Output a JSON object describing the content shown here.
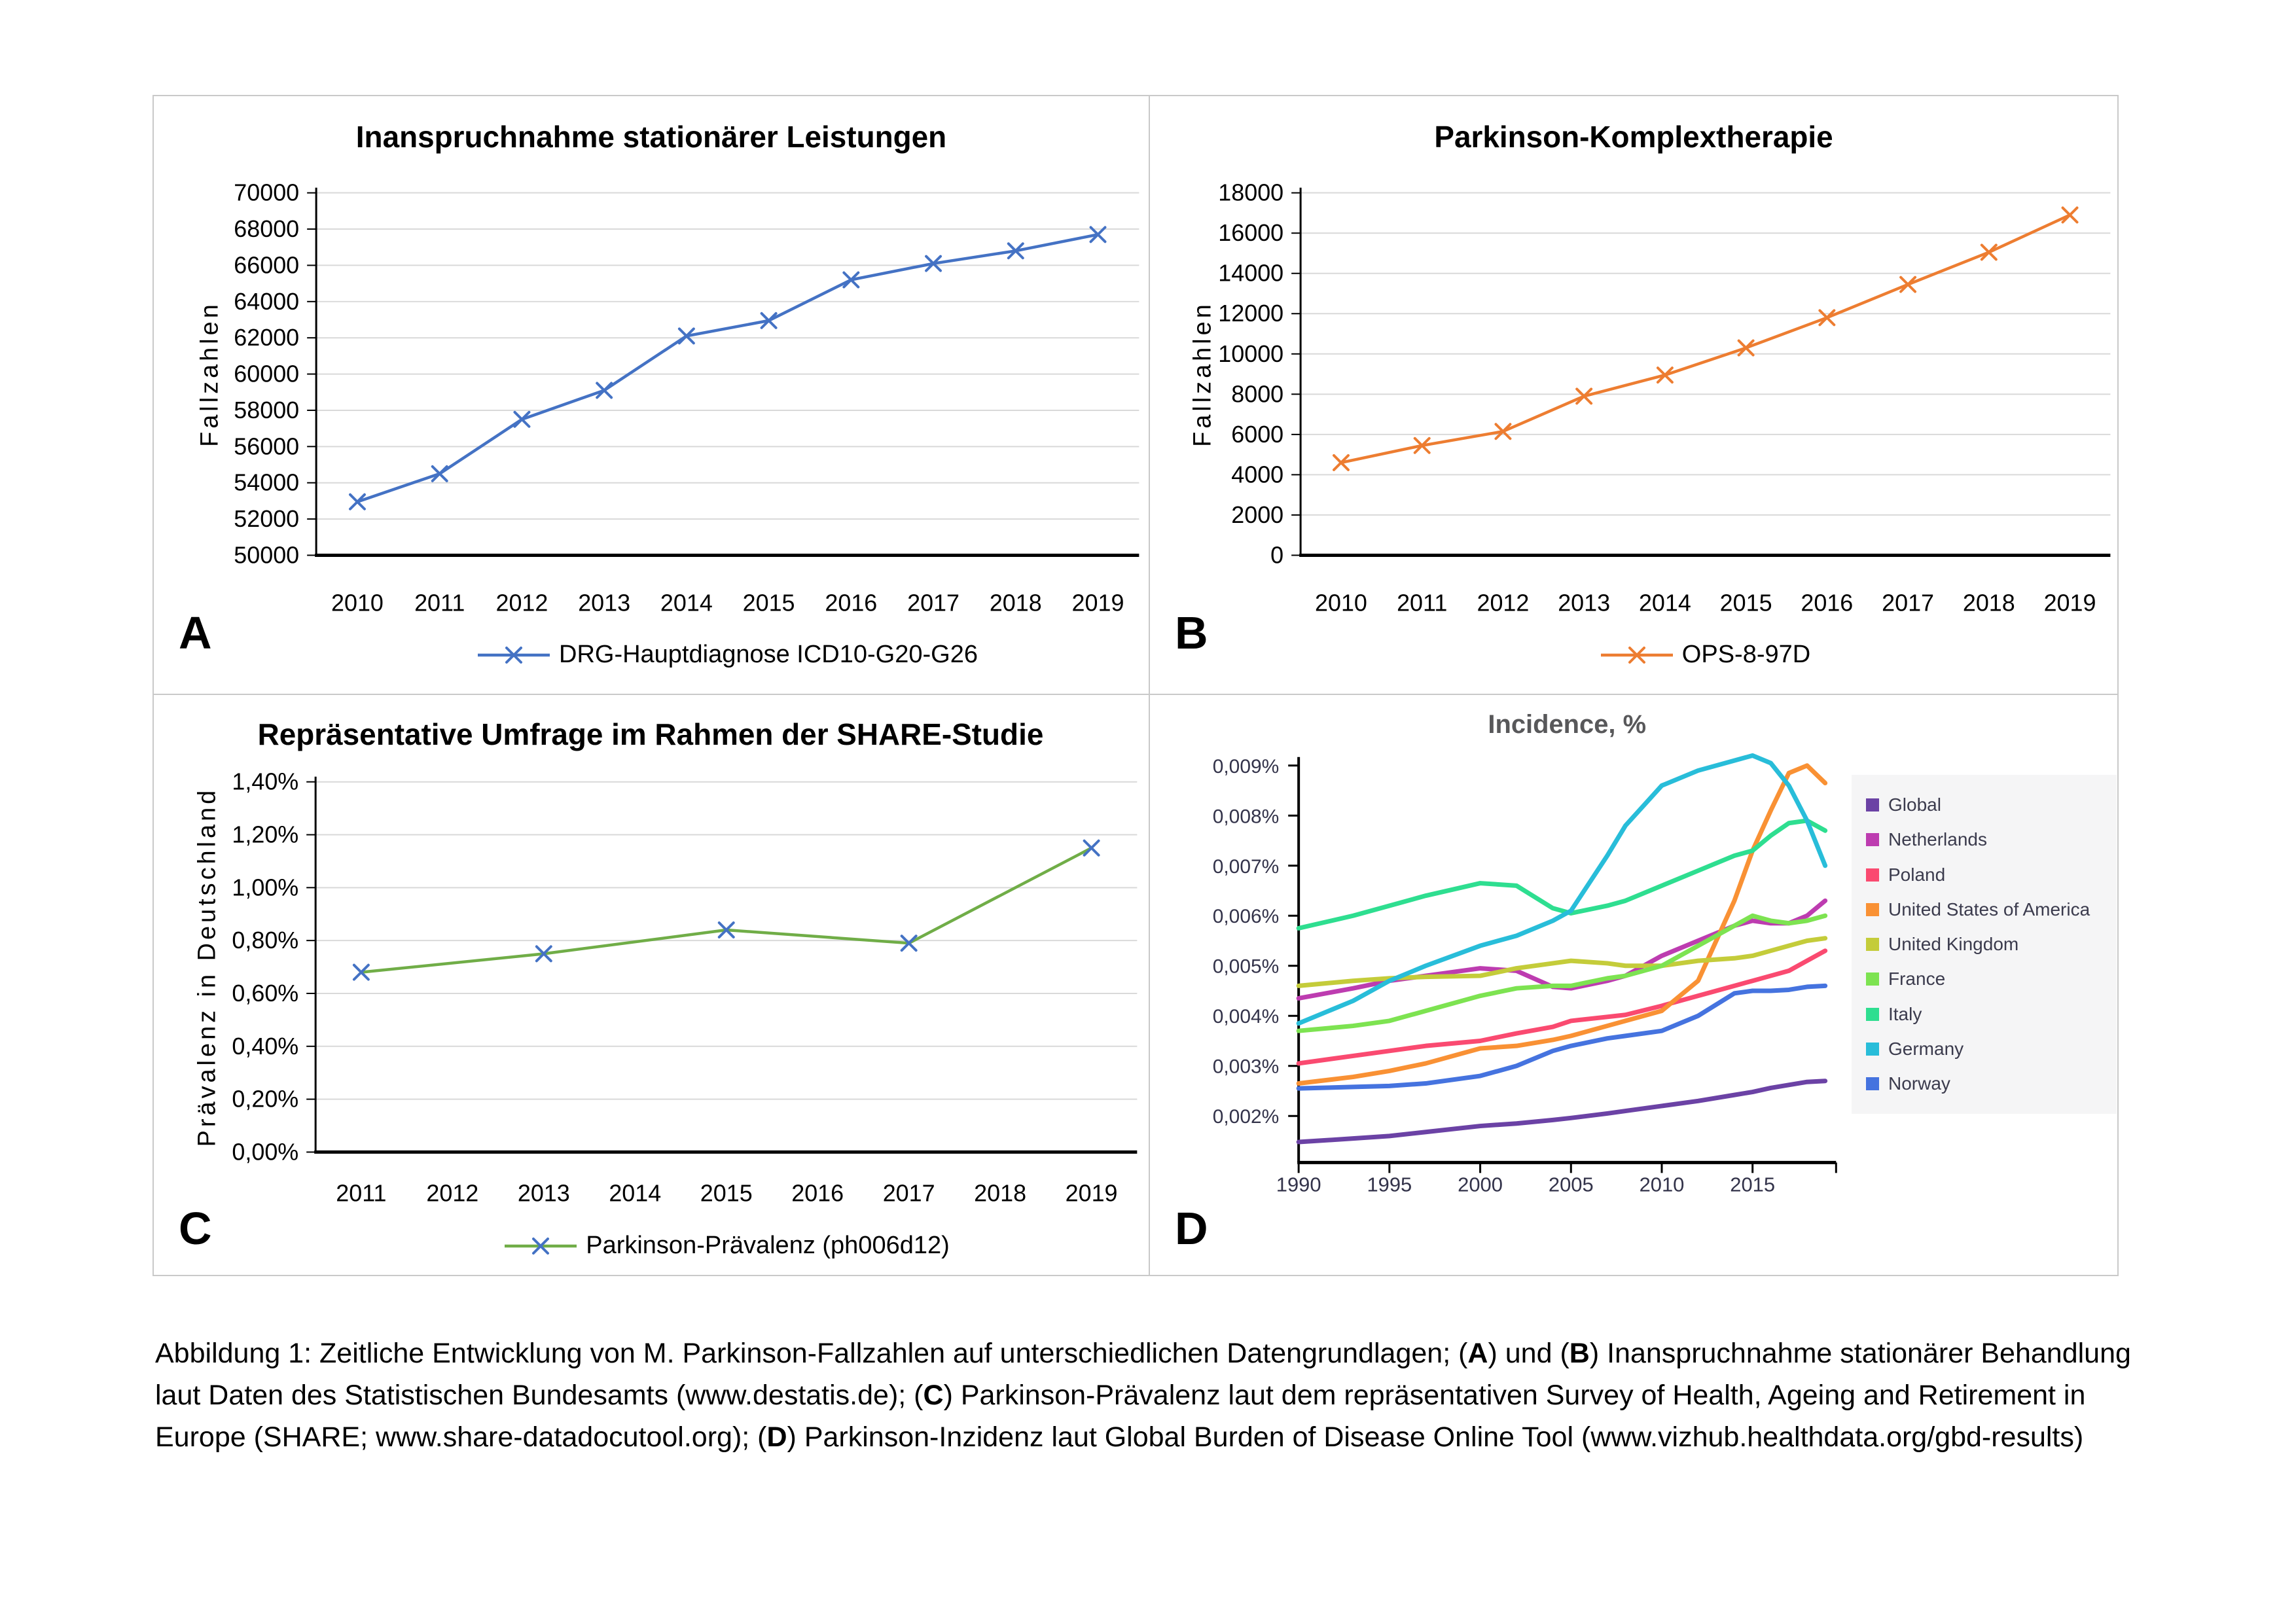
{
  "caption": {
    "lines": [
      [
        {
          "t": "Abbildung 1: Zeitliche Entwicklung von M. Parkinson-Fallzahlen auf unterschiedlichen Datengrundlagen; (",
          "b": false
        },
        {
          "t": "A",
          "b": true
        },
        {
          "t": ") und (",
          "b": false
        },
        {
          "t": "B",
          "b": true
        },
        {
          "t": ") Inanspruchnahme stationärer Behandlung",
          "b": false
        }
      ],
      [
        {
          "t": "laut Daten des Statistischen Bundesamts (www.destatis.de); (",
          "b": false
        },
        {
          "t": "C",
          "b": true
        },
        {
          "t": ") Parkinson-Prävalenz laut dem repräsentativen Survey of Health, Ageing and Retirement in",
          "b": false
        }
      ],
      [
        {
          "t": "Europe (SHARE; www.share-datadocutool.org); (",
          "b": false
        },
        {
          "t": "D",
          "b": true
        },
        {
          "t": ") Parkinson-Inzidenz laut Global Burden of Disease Online Tool (www.vizhub.healthdata.org/gbd-results)",
          "b": false
        }
      ]
    ]
  },
  "chart_data": [
    {
      "panel": "A",
      "type": "line",
      "title": "Inanspruchnahme stationärer Leistungen",
      "ylabel": "Fallzahlen",
      "xlabel": "",
      "ylim": [
        50000,
        70000
      ],
      "grid": true,
      "legend_position": "bottom",
      "y_ticks": [
        {
          "v": 50000,
          "label": "50000"
        },
        {
          "v": 52000,
          "label": "52000"
        },
        {
          "v": 54000,
          "label": "54000"
        },
        {
          "v": 56000,
          "label": "56000"
        },
        {
          "v": 58000,
          "label": "58000"
        },
        {
          "v": 60000,
          "label": "60000"
        },
        {
          "v": 62000,
          "label": "62000"
        },
        {
          "v": 64000,
          "label": "64000"
        },
        {
          "v": 66000,
          "label": "66000"
        },
        {
          "v": 68000,
          "label": "68000"
        },
        {
          "v": 70000,
          "label": "70000"
        }
      ],
      "categories": [
        "2010",
        "2011",
        "2012",
        "2013",
        "2014",
        "2015",
        "2016",
        "2017",
        "2018",
        "2019"
      ],
      "series": [
        {
          "name": "DRG-Hauptdiagnose ICD10-G20-G26",
          "color": "#4472C4",
          "marker": "x",
          "marker_color": "#4472C4",
          "values": [
            52950,
            54500,
            57500,
            59100,
            62100,
            62950,
            65200,
            66100,
            66800,
            67700
          ]
        }
      ]
    },
    {
      "panel": "B",
      "type": "line",
      "title": "Parkinson-Komplextherapie",
      "ylabel": "Fallzahlen",
      "xlabel": "",
      "ylim": [
        0,
        18000
      ],
      "grid": true,
      "legend_position": "bottom",
      "y_ticks": [
        {
          "v": 0,
          "label": "0"
        },
        {
          "v": 2000,
          "label": "2000"
        },
        {
          "v": 4000,
          "label": "4000"
        },
        {
          "v": 6000,
          "label": "6000"
        },
        {
          "v": 8000,
          "label": "8000"
        },
        {
          "v": 10000,
          "label": "10000"
        },
        {
          "v": 12000,
          "label": "12000"
        },
        {
          "v": 14000,
          "label": "14000"
        },
        {
          "v": 16000,
          "label": "16000"
        },
        {
          "v": 18000,
          "label": "18000"
        }
      ],
      "categories": [
        "2010",
        "2011",
        "2012",
        "2013",
        "2014",
        "2015",
        "2016",
        "2017",
        "2018",
        "2019"
      ],
      "series": [
        {
          "name": "OPS-8-97D",
          "color": "#ED7D31",
          "marker": "x",
          "marker_color": "#ED7D31",
          "values": [
            4600,
            5450,
            6150,
            7900,
            8950,
            10300,
            11800,
            13450,
            15050,
            16900
          ]
        }
      ]
    },
    {
      "panel": "C",
      "type": "line",
      "title": "Repräsentative Umfrage im Rahmen der SHARE-Studie",
      "ylabel": "Prävalenz in Deutschland",
      "xlabel": "",
      "ylim": [
        0,
        1.4
      ],
      "grid": true,
      "legend_position": "bottom",
      "y_ticks": [
        {
          "v": 0.0,
          "label": "0,00%"
        },
        {
          "v": 0.2,
          "label": "0,20%"
        },
        {
          "v": 0.4,
          "label": "0,40%"
        },
        {
          "v": 0.6,
          "label": "0,60%"
        },
        {
          "v": 0.8,
          "label": "0,80%"
        },
        {
          "v": 1.0,
          "label": "1,00%"
        },
        {
          "v": 1.2,
          "label": "1,20%"
        },
        {
          "v": 1.4,
          "label": "1,40%"
        }
      ],
      "categories": [
        "2011",
        "2012",
        "2013",
        "2014",
        "2015",
        "2016",
        "2017",
        "2018",
        "2019"
      ],
      "series": [
        {
          "name": "Parkinson-Prävalenz (ph006d12)",
          "color": "#70AD47",
          "marker": "x",
          "marker_color": "#4472C4",
          "x_indices": [
            0,
            2,
            4,
            6,
            8
          ],
          "values": [
            0.68,
            0.75,
            0.84,
            0.79,
            1.15
          ]
        }
      ]
    },
    {
      "panel": "D",
      "type": "line",
      "title": "Incidence, %",
      "ylabel": "",
      "xlabel": "",
      "xlim": [
        1990,
        2019.6
      ],
      "ylim": [
        0.00107,
        0.00917
      ],
      "grid": false,
      "legend_position": "right",
      "y_ticks": [
        {
          "v": 0.002,
          "label": "0,002%"
        },
        {
          "v": 0.003,
          "label": "0,003%"
        },
        {
          "v": 0.004,
          "label": "0,004%"
        },
        {
          "v": 0.005,
          "label": "0,005%"
        },
        {
          "v": 0.006,
          "label": "0,006%"
        },
        {
          "v": 0.007,
          "label": "0,007%"
        },
        {
          "v": 0.008,
          "label": "0,008%"
        },
        {
          "v": 0.009,
          "label": "0,009%"
        }
      ],
      "x_ticks": [
        {
          "v": 1990,
          "label": "1990"
        },
        {
          "v": 1995,
          "label": "1995"
        },
        {
          "v": 2000,
          "label": "2000"
        },
        {
          "v": 2005,
          "label": "2005"
        },
        {
          "v": 2010,
          "label": "2010"
        },
        {
          "v": 2015,
          "label": "2015"
        },
        {
          "v": 2019.6,
          "label": ""
        }
      ],
      "x": [
        1990,
        1993,
        1995,
        1997,
        2000,
        2002,
        2004,
        2005,
        2007,
        2008,
        2010,
        2012,
        2014,
        2015,
        2016,
        2017,
        2018,
        2019
      ],
      "series": [
        {
          "name": "Global",
          "color": "#6B42A5",
          "values": [
            0.00148,
            0.00155,
            0.0016,
            0.00168,
            0.0018,
            0.00185,
            0.00192,
            0.00196,
            0.00205,
            0.0021,
            0.0022,
            0.0023,
            0.00242,
            0.00248,
            0.00256,
            0.00262,
            0.00268,
            0.0027
          ]
        },
        {
          "name": "Netherlands",
          "color": "#BD3CB0",
          "values": [
            0.00435,
            0.00455,
            0.0047,
            0.0048,
            0.00495,
            0.0049,
            0.00458,
            0.00455,
            0.0047,
            0.0048,
            0.0052,
            0.0055,
            0.0058,
            0.0059,
            0.00585,
            0.00585,
            0.006,
            0.0063
          ]
        },
        {
          "name": "Poland",
          "color": "#FA4A70",
          "values": [
            0.00305,
            0.0032,
            0.0033,
            0.0034,
            0.0035,
            0.00365,
            0.00378,
            0.0039,
            0.00398,
            0.00402,
            0.0042,
            0.0044,
            0.0046,
            0.0047,
            0.0048,
            0.0049,
            0.0051,
            0.0053
          ]
        },
        {
          "name": "United States of America",
          "color": "#F99134",
          "values": [
            0.00265,
            0.00278,
            0.0029,
            0.00305,
            0.00335,
            0.0034,
            0.00352,
            0.0036,
            0.0038,
            0.0039,
            0.0041,
            0.0047,
            0.0063,
            0.0073,
            0.0081,
            0.00885,
            0.009,
            0.00865
          ]
        },
        {
          "name": "United Kingdom",
          "color": "#C4CC3A",
          "values": [
            0.0046,
            0.0047,
            0.00475,
            0.00478,
            0.0048,
            0.00495,
            0.00505,
            0.0051,
            0.00505,
            0.005,
            0.005,
            0.0051,
            0.00515,
            0.0052,
            0.0053,
            0.0054,
            0.0055,
            0.00555
          ]
        },
        {
          "name": "France",
          "color": "#7DE351",
          "values": [
            0.0037,
            0.0038,
            0.0039,
            0.0041,
            0.0044,
            0.00455,
            0.0046,
            0.0046,
            0.00475,
            0.0048,
            0.005,
            0.0054,
            0.0058,
            0.006,
            0.0059,
            0.00585,
            0.0059,
            0.006
          ]
        },
        {
          "name": "Italy",
          "color": "#2EDE90",
          "values": [
            0.00575,
            0.006,
            0.0062,
            0.0064,
            0.00665,
            0.0066,
            0.00615,
            0.00605,
            0.0062,
            0.0063,
            0.0066,
            0.0069,
            0.0072,
            0.0073,
            0.0076,
            0.00785,
            0.0079,
            0.0077
          ]
        },
        {
          "name": "Germany",
          "color": "#28BDD9",
          "values": [
            0.00385,
            0.0043,
            0.0047,
            0.005,
            0.0054,
            0.0056,
            0.0059,
            0.0061,
            0.0072,
            0.0078,
            0.0086,
            0.0089,
            0.0091,
            0.0092,
            0.00905,
            0.0086,
            0.0079,
            0.007
          ]
        },
        {
          "name": "Norway",
          "color": "#4573DF",
          "values": [
            0.00255,
            0.00258,
            0.0026,
            0.00265,
            0.0028,
            0.003,
            0.0033,
            0.0034,
            0.00355,
            0.0036,
            0.0037,
            0.004,
            0.00445,
            0.0045,
            0.0045,
            0.00452,
            0.00458,
            0.0046
          ]
        }
      ]
    }
  ]
}
